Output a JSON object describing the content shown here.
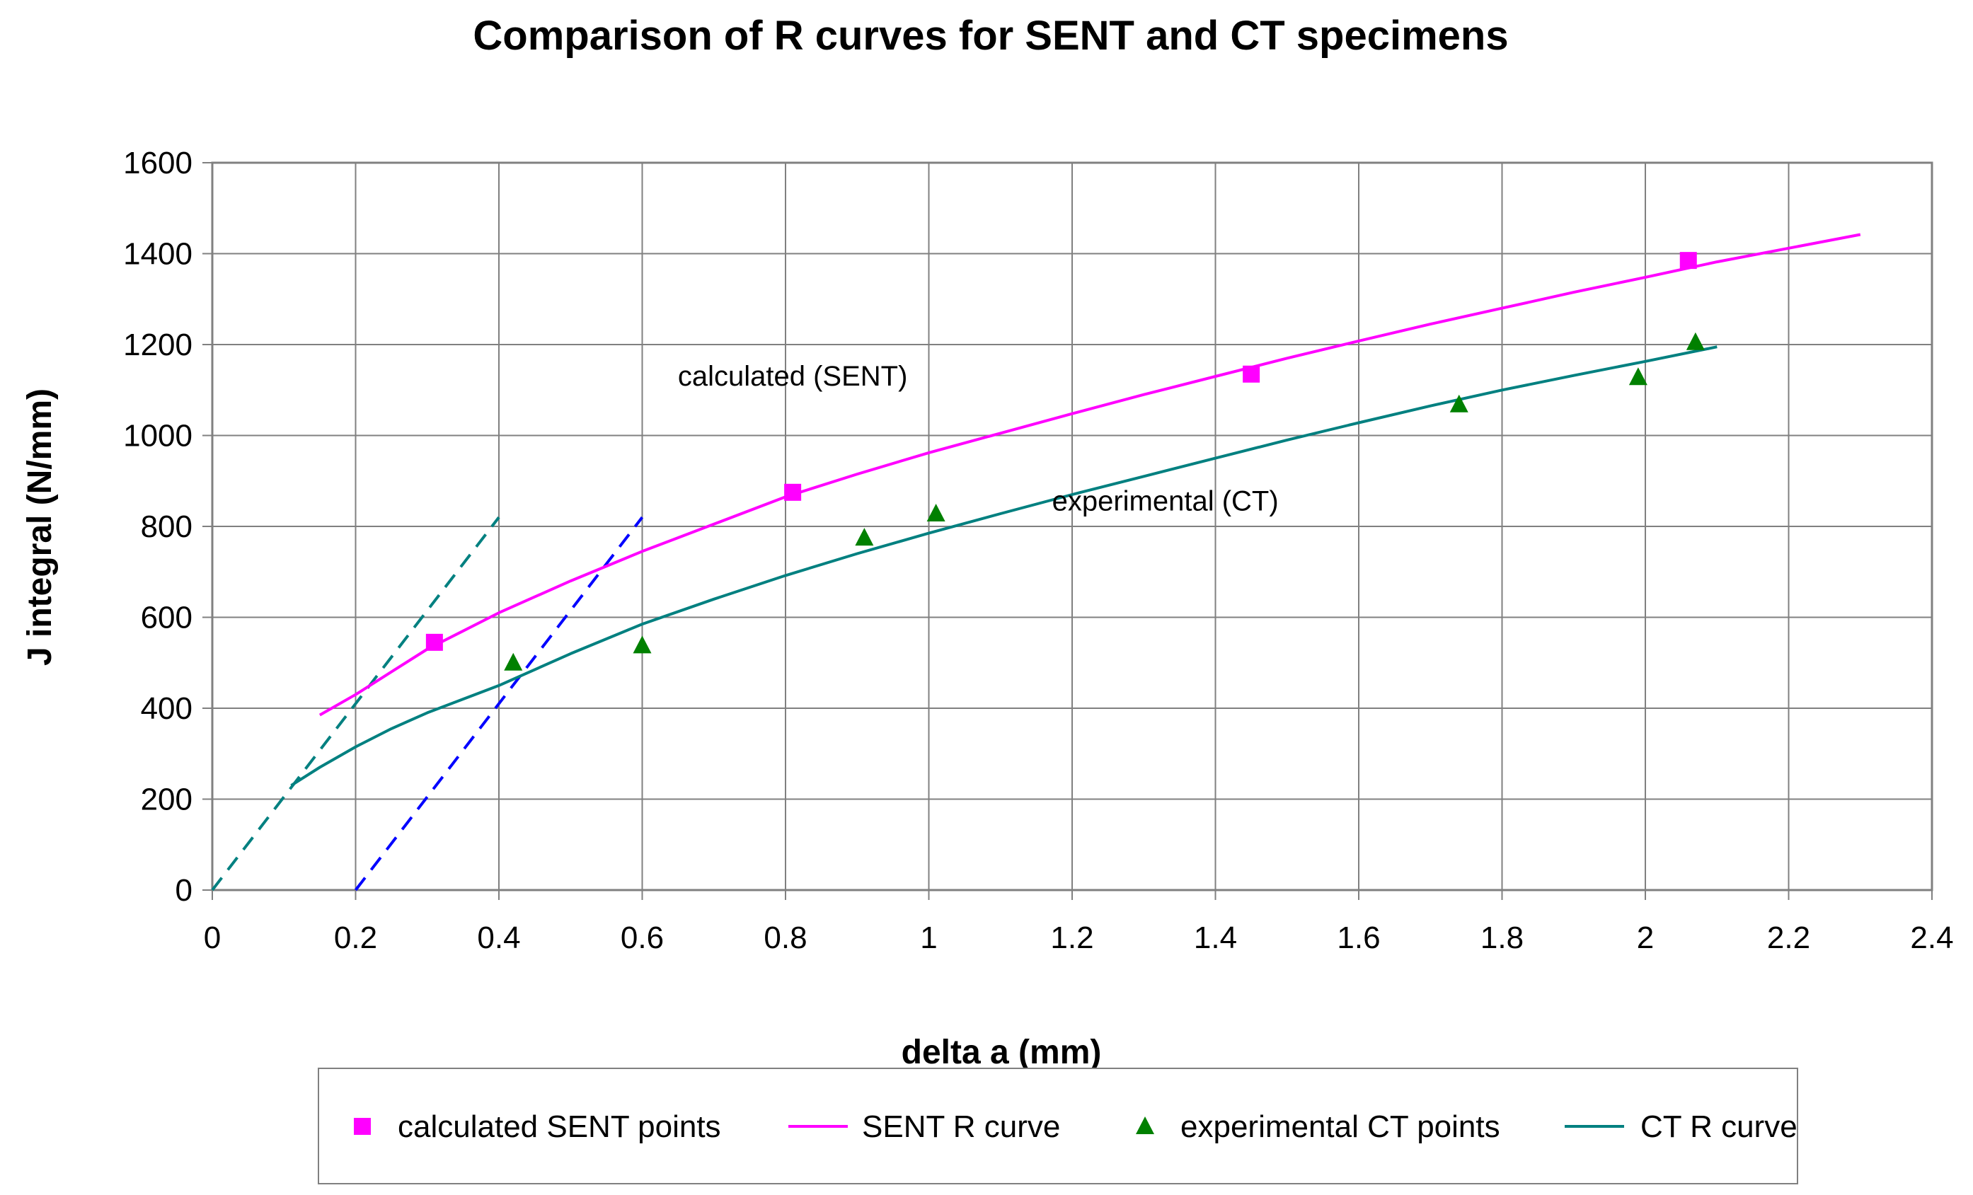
{
  "chart_data": {
    "type": "scatter",
    "title": "Comparison of R curves for SENT and CT specimens",
    "xlabel": "delta a (mm)",
    "ylabel": "J integral (N/mm)",
    "xlim": [
      0,
      2.4
    ],
    "ylim": [
      0,
      1600
    ],
    "x_ticks": [
      0,
      0.2,
      0.4,
      0.6,
      0.8,
      1,
      1.2,
      1.4,
      1.6,
      1.8,
      2,
      2.2,
      2.4
    ],
    "x_tick_labels": [
      "0",
      "0.2",
      "0.4",
      "0.6",
      "0.8",
      "1",
      "1.2",
      "1.4",
      "1.6",
      "1.8",
      "2",
      "2.2",
      "2.4"
    ],
    "y_ticks": [
      0,
      200,
      400,
      600,
      800,
      1000,
      1200,
      1400,
      1600
    ],
    "y_tick_labels": [
      "0",
      "200",
      "400",
      "600",
      "800",
      "1000",
      "1200",
      "1400",
      "1600"
    ],
    "grid": true,
    "legend_position": "bottom",
    "series": [
      {
        "name": "calculated SENT points",
        "kind": "markers",
        "marker": "square",
        "color": "#ff00ff",
        "x": [
          0.31,
          0.81,
          1.45,
          2.06
        ],
        "y": [
          545,
          875,
          1135,
          1385
        ]
      },
      {
        "name": "SENT R curve",
        "kind": "line",
        "color": "#ff00ff",
        "x": [
          0.15,
          0.2,
          0.25,
          0.3,
          0.35,
          0.4,
          0.45,
          0.5,
          0.6,
          0.7,
          0.8,
          0.9,
          1.0,
          1.1,
          1.2,
          1.3,
          1.4,
          1.5,
          1.6,
          1.7,
          1.8,
          1.9,
          2.0,
          2.1,
          2.2,
          2.3
        ],
        "y": [
          385,
          430,
          480,
          530,
          570,
          610,
          645,
          680,
          745,
          805,
          865,
          915,
          962,
          1005,
          1048,
          1090,
          1130,
          1170,
          1208,
          1245,
          1280,
          1315,
          1348,
          1382,
          1412,
          1442
        ]
      },
      {
        "name": "experimental CT points",
        "kind": "markers",
        "marker": "triangle",
        "color": "#008000",
        "x": [
          0.42,
          0.6,
          0.91,
          1.01,
          1.74,
          1.99,
          2.07
        ],
        "y": [
          500,
          538,
          775,
          828,
          1068,
          1128,
          1205
        ]
      },
      {
        "name": "CT R curve",
        "kind": "line",
        "color": "#008080",
        "x": [
          0.11,
          0.15,
          0.2,
          0.25,
          0.3,
          0.35,
          0.4,
          0.5,
          0.6,
          0.7,
          0.8,
          0.9,
          1.0,
          1.1,
          1.2,
          1.3,
          1.4,
          1.5,
          1.6,
          1.7,
          1.8,
          1.9,
          2.0,
          2.1
        ],
        "y": [
          230,
          270,
          315,
          355,
          390,
          420,
          450,
          520,
          585,
          640,
          692,
          740,
          785,
          828,
          870,
          910,
          950,
          990,
          1028,
          1065,
          1100,
          1132,
          1163,
          1195
        ]
      }
    ],
    "construction_lines": [
      {
        "color": "#008080",
        "style": "dashed",
        "x": [
          0,
          0.4
        ],
        "y": [
          0,
          820
        ]
      },
      {
        "color": "#0000ff",
        "style": "dashed",
        "x": [
          0.2,
          0.6
        ],
        "y": [
          0,
          820
        ]
      }
    ],
    "annotations": [
      {
        "text": "calculated (SENT)",
        "x": 0.81,
        "y": 1110
      },
      {
        "text": "experimental (CT)",
        "x": 1.33,
        "y": 835
      }
    ]
  }
}
